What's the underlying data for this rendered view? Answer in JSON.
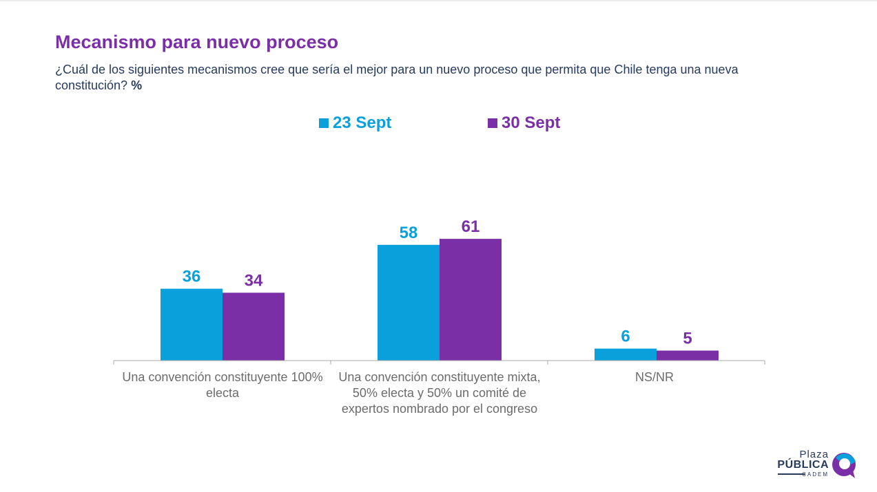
{
  "title": "Mecanismo para nuevo proceso",
  "subtitle": {
    "question": "¿Cuál de los siguientes mecanismos cree que sería el mejor para un nuevo proceso que permita que Chile tenga una nueva constitución?",
    "unit": "%"
  },
  "colors": {
    "title": "#7b2fa6",
    "series_1": "#0aa0dc",
    "series_2": "#7b2fa6",
    "axis": "#a9a9a9",
    "category_label": "#6b6b6b"
  },
  "chart_data": {
    "type": "bar",
    "categories": [
      "Una convención constituyente 100% electa",
      "Una convención constituyente mixta, 50% electa y 50% un comité de expertos nombrado por el congreso",
      "NS/NR"
    ],
    "series": [
      {
        "name": "23 Sept",
        "values": [
          36,
          58,
          6
        ]
      },
      {
        "name": "30 Sept",
        "values": [
          34,
          61,
          5
        ]
      }
    ],
    "ylim": [
      0,
      100
    ],
    "grid": false,
    "legend_position": "top-center",
    "data_labels": true
  },
  "logo": {
    "line1": "Plaza",
    "line2": "PÚBLICA",
    "line3": "CADEM",
    "icon": "speech-bubble-icon"
  }
}
